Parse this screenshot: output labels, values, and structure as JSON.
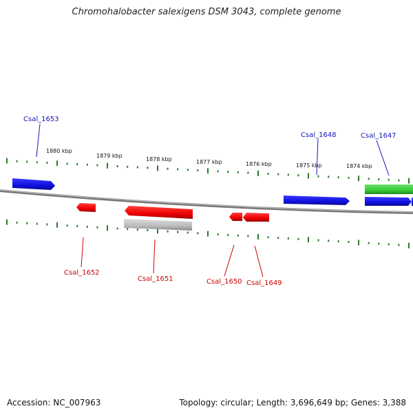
{
  "title": "Chromohalobacter salexigens DSM 3043, complete genome",
  "footer": {
    "accession": "Accession: NC_007963",
    "stats": "Topology: circular; Length: 3,696,649 bp; Genes: 3,388"
  },
  "colors": {
    "forward_gene": "#1010e0",
    "reverse_gene": "#ee0000",
    "rna": "#33cc33",
    "pseudo": "#bbbbbb",
    "tick": "#2a7a2a",
    "backbone": "#888888",
    "forward_label": "#1414b8",
    "reverse_label": "#cc0000"
  },
  "kbp_ticks": [
    "1880 kbp",
    "1879 kbp",
    "1878 kbp",
    "1877 kbp",
    "1876 kbp",
    "1875 kbp",
    "1874 kbp"
  ],
  "genes": [
    {
      "label": "Csal_1653",
      "strand": "forward"
    },
    {
      "label": "Csal_1648",
      "strand": "forward"
    },
    {
      "label": "Csal_1647",
      "strand": "forward"
    },
    {
      "label": "Csal_1652",
      "strand": "reverse"
    },
    {
      "label": "Csal_1651",
      "strand": "reverse"
    },
    {
      "label": "Csal_1650",
      "strand": "reverse"
    },
    {
      "label": "Csal_1649",
      "strand": "reverse"
    }
  ]
}
